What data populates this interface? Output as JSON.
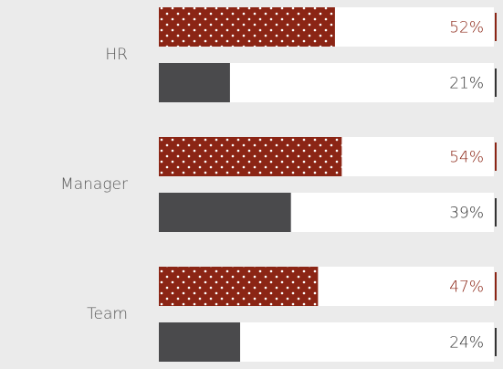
{
  "chart_data": {
    "type": "hbar",
    "categories": [
      "HR",
      "Manager",
      "Team"
    ],
    "series": [
      {
        "color": "#8b2515",
        "pattern": "dots",
        "values": [
          52,
          54,
          47
        ],
        "value_labels": [
          "52%",
          "54%",
          "47%"
        ]
      },
      {
        "color": "#4a4a4c",
        "values": [
          21,
          39,
          24
        ],
        "value_labels": [
          "21%",
          "39%",
          "24%"
        ]
      }
    ],
    "xlim": [
      0,
      100
    ]
  }
}
